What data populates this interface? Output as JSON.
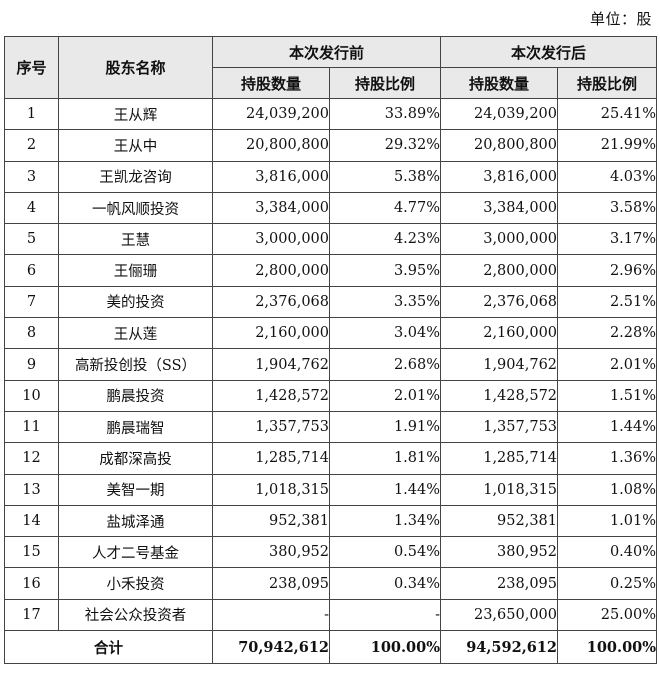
{
  "unit_label": "单位：股",
  "header": {
    "seq": "序号",
    "holder": "股东名称",
    "before": "本次发行前",
    "after": "本次发行后",
    "shares": "持股数量",
    "ratio": "持股比例"
  },
  "rows": [
    {
      "seq": "1",
      "name": "王从辉",
      "b_shares": "24,039,200",
      "b_ratio": "33.89%",
      "a_shares": "24,039,200",
      "a_ratio": "25.41%"
    },
    {
      "seq": "2",
      "name": "王从中",
      "b_shares": "20,800,800",
      "b_ratio": "29.32%",
      "a_shares": "20,800,800",
      "a_ratio": "21.99%"
    },
    {
      "seq": "3",
      "name": "王凯龙咨询",
      "b_shares": "3,816,000",
      "b_ratio": "5.38%",
      "a_shares": "3,816,000",
      "a_ratio": "4.03%"
    },
    {
      "seq": "4",
      "name": "一帆风顺投资",
      "b_shares": "3,384,000",
      "b_ratio": "4.77%",
      "a_shares": "3,384,000",
      "a_ratio": "3.58%"
    },
    {
      "seq": "5",
      "name": "王慧",
      "b_shares": "3,000,000",
      "b_ratio": "4.23%",
      "a_shares": "3,000,000",
      "a_ratio": "3.17%"
    },
    {
      "seq": "6",
      "name": "王俪珊",
      "b_shares": "2,800,000",
      "b_ratio": "3.95%",
      "a_shares": "2,800,000",
      "a_ratio": "2.96%"
    },
    {
      "seq": "7",
      "name": "美的投资",
      "b_shares": "2,376,068",
      "b_ratio": "3.35%",
      "a_shares": "2,376,068",
      "a_ratio": "2.51%"
    },
    {
      "seq": "8",
      "name": "王从莲",
      "b_shares": "2,160,000",
      "b_ratio": "3.04%",
      "a_shares": "2,160,000",
      "a_ratio": "2.28%"
    },
    {
      "seq": "9",
      "name": "高新投创投（SS）",
      "b_shares": "1,904,762",
      "b_ratio": "2.68%",
      "a_shares": "1,904,762",
      "a_ratio": "2.01%"
    },
    {
      "seq": "10",
      "name": "鹏晨投资",
      "b_shares": "1,428,572",
      "b_ratio": "2.01%",
      "a_shares": "1,428,572",
      "a_ratio": "1.51%"
    },
    {
      "seq": "11",
      "name": "鹏晨瑞智",
      "b_shares": "1,357,753",
      "b_ratio": "1.91%",
      "a_shares": "1,357,753",
      "a_ratio": "1.44%"
    },
    {
      "seq": "12",
      "name": "成都深高投",
      "b_shares": "1,285,714",
      "b_ratio": "1.81%",
      "a_shares": "1,285,714",
      "a_ratio": "1.36%"
    },
    {
      "seq": "13",
      "name": "美智一期",
      "b_shares": "1,018,315",
      "b_ratio": "1.44%",
      "a_shares": "1,018,315",
      "a_ratio": "1.08%"
    },
    {
      "seq": "14",
      "name": "盐城泽通",
      "b_shares": "952,381",
      "b_ratio": "1.34%",
      "a_shares": "952,381",
      "a_ratio": "1.01%"
    },
    {
      "seq": "15",
      "name": "人才二号基金",
      "b_shares": "380,952",
      "b_ratio": "0.54%",
      "a_shares": "380,952",
      "a_ratio": "0.40%"
    },
    {
      "seq": "16",
      "name": "小禾投资",
      "b_shares": "238,095",
      "b_ratio": "0.34%",
      "a_shares": "238,095",
      "a_ratio": "0.25%"
    },
    {
      "seq": "17",
      "name": "社会公众投资者",
      "b_shares": "-",
      "b_ratio": "-",
      "a_shares": "23,650,000",
      "a_ratio": "25.00%"
    }
  ],
  "total": {
    "label": "合计",
    "b_shares": "70,942,612",
    "b_ratio": "100.00%",
    "a_shares": "94,592,612",
    "a_ratio": "100.00%"
  }
}
